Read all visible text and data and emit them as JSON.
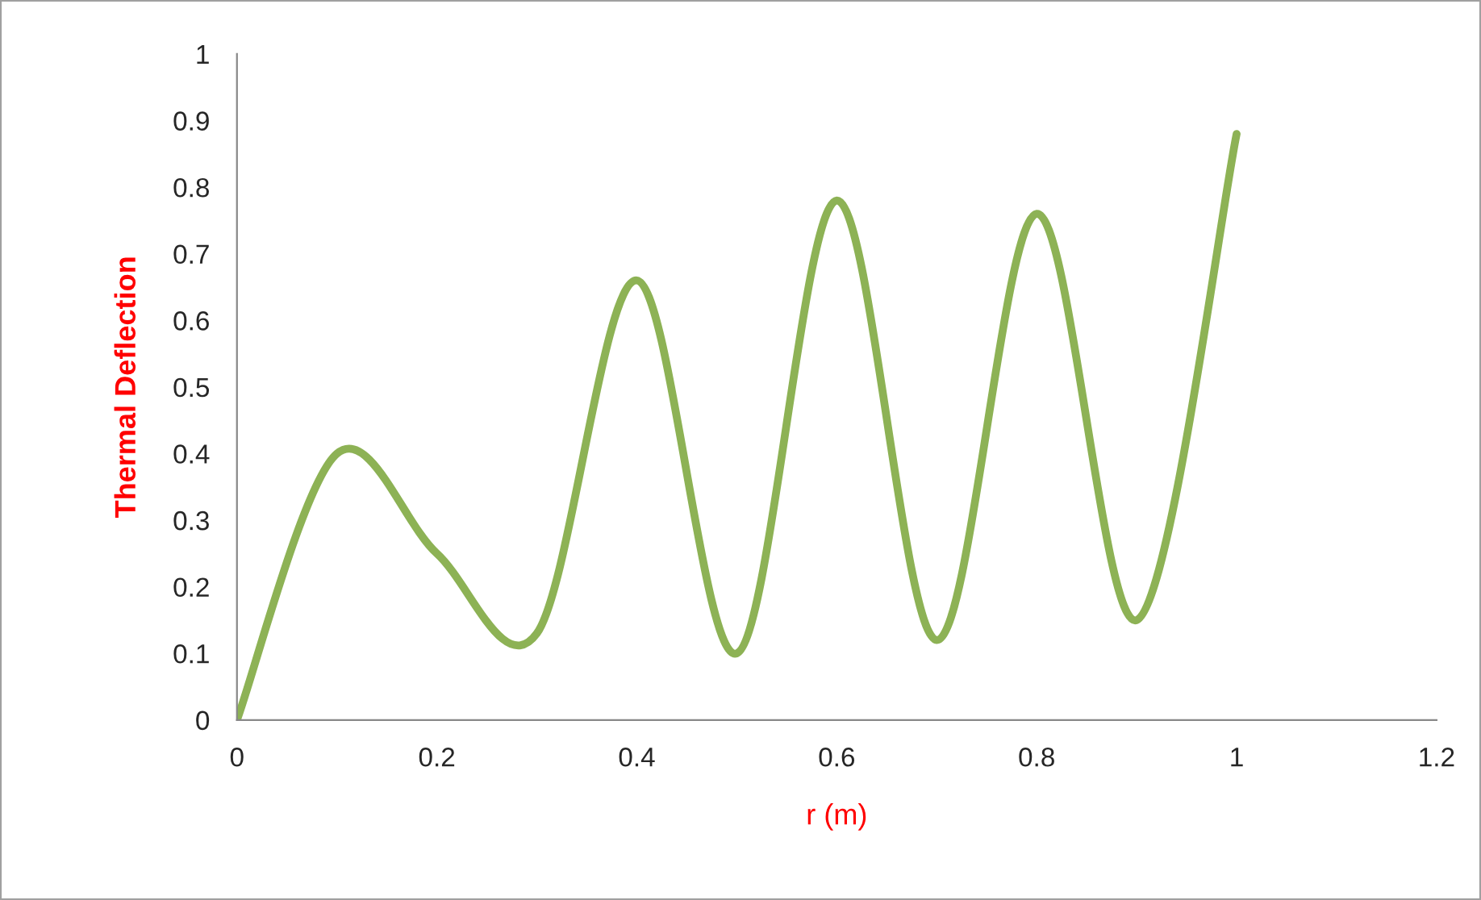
{
  "chart_data": {
    "type": "line",
    "xlabel": "r (m)",
    "ylabel": "Thermal Deflection",
    "x": [
      0,
      0.1,
      0.2,
      0.3,
      0.4,
      0.5,
      0.6,
      0.7,
      0.8,
      0.9,
      1.0
    ],
    "series": [
      {
        "color": "#8db255",
        "values": [
          0,
          0.4,
          0.25,
          0.13,
          0.66,
          0.1,
          0.78,
          0.12,
          0.76,
          0.15,
          0.88
        ]
      }
    ],
    "xlim": [
      0,
      1.2
    ],
    "xticks": [
      0,
      0.2,
      0.4,
      0.6,
      0.8,
      1,
      1.2
    ],
    "ylim": [
      0,
      1
    ],
    "yticks": [
      0,
      0.1,
      0.2,
      0.3,
      0.4,
      0.5,
      0.6,
      0.7,
      0.8,
      0.9,
      1
    ],
    "grid": false,
    "legend": false,
    "marker": "none",
    "line_style": "solid"
  }
}
